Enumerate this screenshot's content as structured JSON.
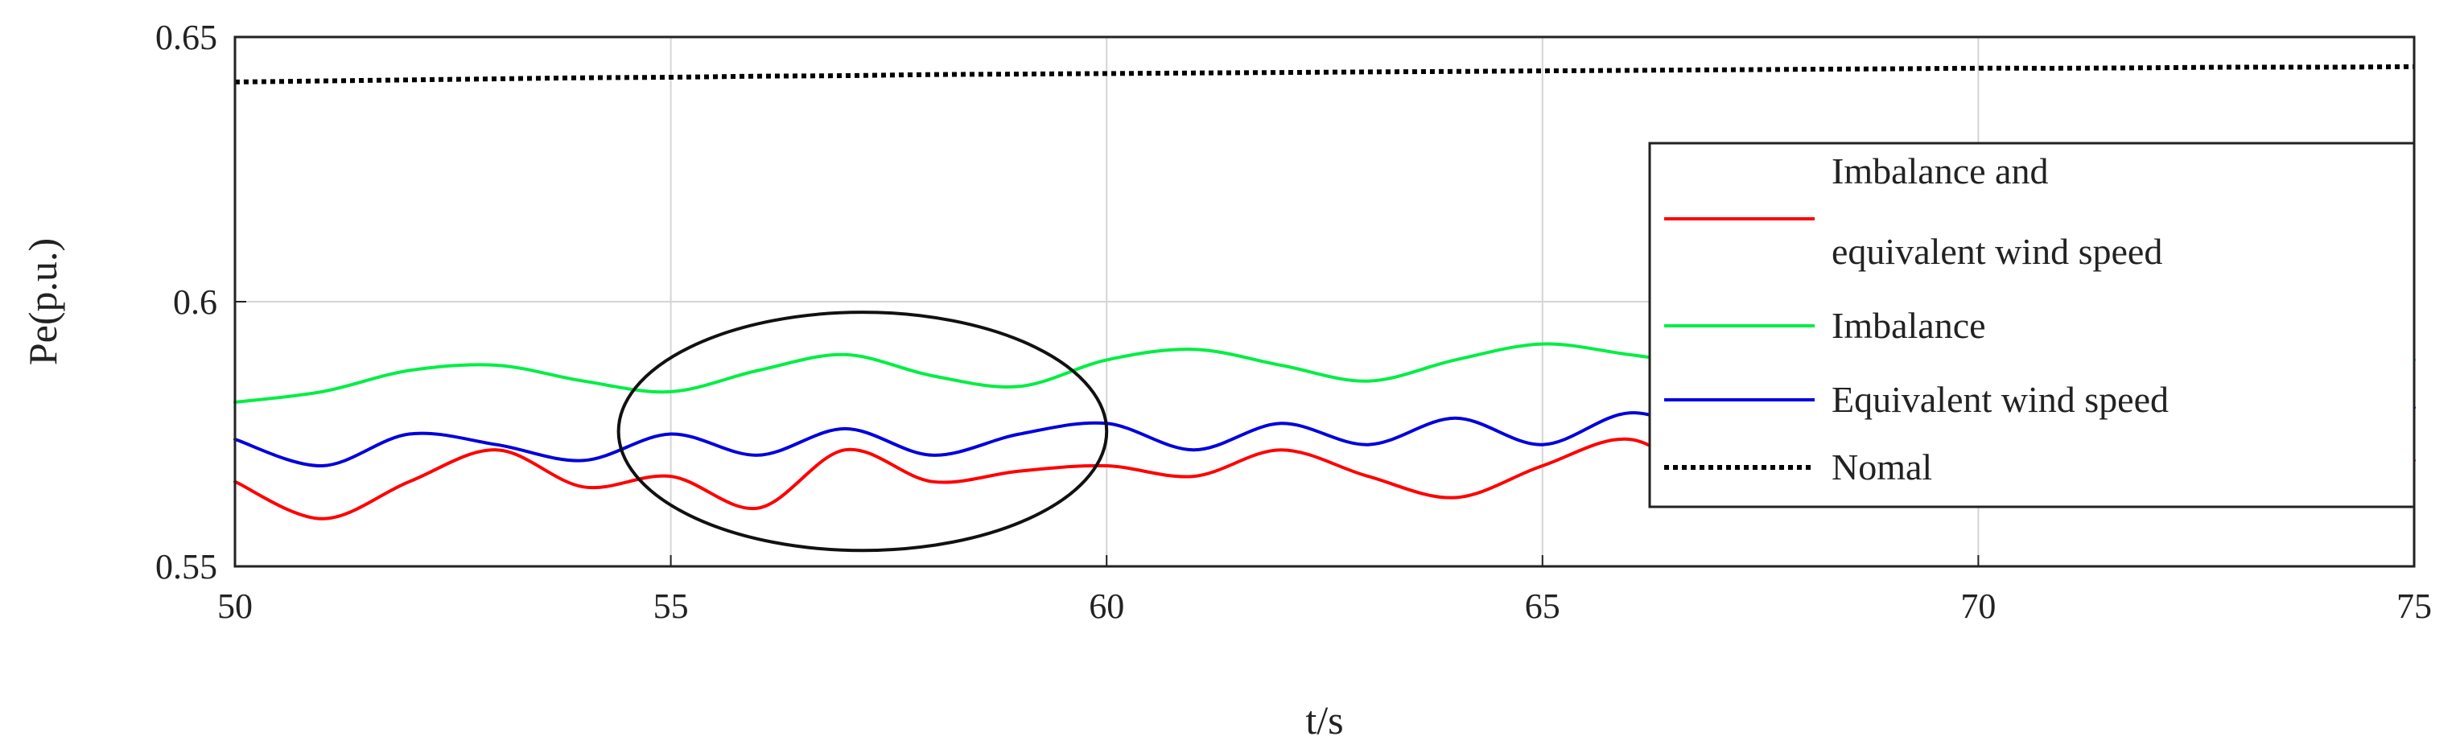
{
  "chart_data": {
    "type": "line",
    "title": "",
    "xlabel": "t/s",
    "ylabel": "Pe(p.u.)",
    "xlim": [
      50,
      75
    ],
    "ylim": [
      0.55,
      0.65
    ],
    "xticks": [
      "50",
      "55",
      "60",
      "65",
      "70",
      "75"
    ],
    "yticks": [
      "0.55",
      "0.6",
      "0.65"
    ],
    "grid": true,
    "legend_position": "right",
    "x": [
      50,
      51,
      52,
      53,
      54,
      55,
      56,
      57,
      58,
      59,
      60,
      61,
      62,
      63,
      64,
      65,
      66,
      67,
      68,
      69,
      70,
      71,
      72,
      73,
      74,
      75
    ],
    "series": [
      {
        "name": "Imbalance and equivalent wind speed",
        "color": "#ff0000",
        "style": "solid",
        "values": [
          0.566,
          0.559,
          0.566,
          0.572,
          0.565,
          0.567,
          0.561,
          0.572,
          0.566,
          0.568,
          0.569,
          0.567,
          0.572,
          0.567,
          0.563,
          0.569,
          0.574,
          0.566,
          0.569,
          0.567,
          0.569,
          0.568,
          0.57,
          0.567,
          0.571,
          0.57
        ]
      },
      {
        "name": "Imbalance",
        "color": "#00ee44",
        "style": "solid",
        "values": [
          0.581,
          0.583,
          0.587,
          0.588,
          0.585,
          0.583,
          0.587,
          0.59,
          0.586,
          0.584,
          0.589,
          0.591,
          0.588,
          0.585,
          0.589,
          0.592,
          0.59,
          0.588,
          0.589,
          0.591,
          0.59,
          0.589,
          0.59,
          0.591,
          0.59,
          0.589
        ]
      },
      {
        "name": "Equivalent wind speed",
        "color": "#0000dd",
        "style": "solid",
        "values": [
          0.574,
          0.569,
          0.575,
          0.573,
          0.57,
          0.575,
          0.571,
          0.576,
          0.571,
          0.575,
          0.577,
          0.572,
          0.577,
          0.573,
          0.578,
          0.573,
          0.579,
          0.575,
          0.578,
          0.576,
          0.578,
          0.577,
          0.578,
          0.577,
          0.578,
          0.58
        ]
      },
      {
        "name": "Nomal",
        "color": "#000000",
        "style": "dotted",
        "values": [
          0.6415,
          0.6417,
          0.6419,
          0.6421,
          0.6423,
          0.6424,
          0.6426,
          0.6427,
          0.6429,
          0.643,
          0.6431,
          0.6432,
          0.6433,
          0.6434,
          0.6435,
          0.6436,
          0.6437,
          0.6438,
          0.6439,
          0.644,
          0.6441,
          0.6441,
          0.6442,
          0.6443,
          0.6443,
          0.6444
        ]
      }
    ],
    "annotations": [
      {
        "type": "ellipse",
        "center": [
          57.2,
          0.5755
        ],
        "radius_x": 2.8,
        "radius_y": 0.0225
      }
    ]
  }
}
